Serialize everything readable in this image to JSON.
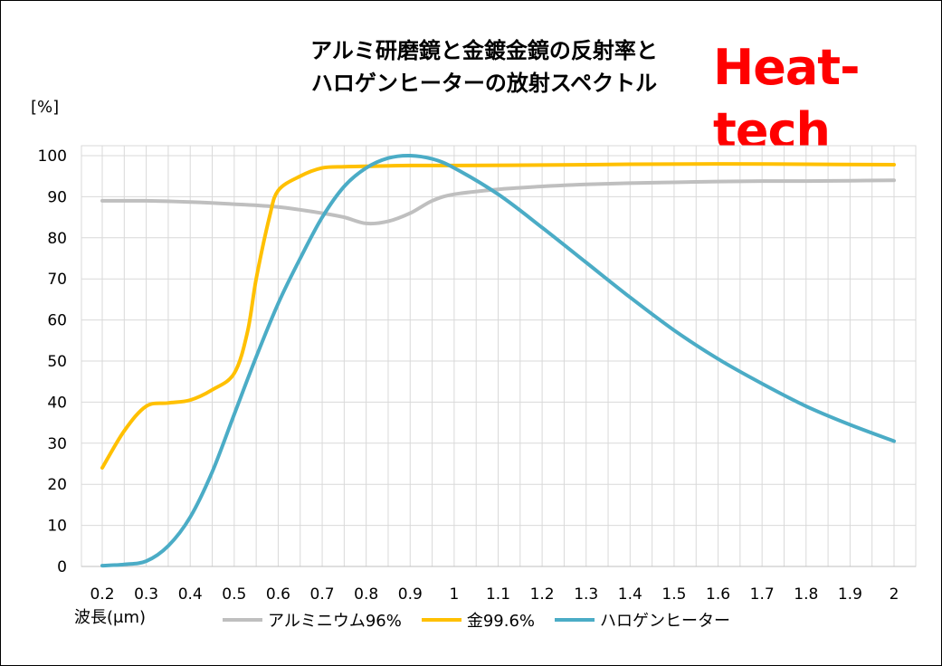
{
  "header": {
    "title_line1": "アルミ研磨鏡と金鍍金鏡の反射率と",
    "title_line2": "ハロゲンヒーターの放射スペクトル",
    "brand": "Heat-tech",
    "brand_color": "#ff0000"
  },
  "chart_data": {
    "type": "line",
    "title": "アルミ研磨鏡と金鍍金鏡の反射率と ハロゲンヒーターの放射スペクトル",
    "ylabel": "[%]",
    "xlabel": "波長(μm)",
    "xlim": [
      0.2,
      2.0
    ],
    "ylim": [
      0,
      100
    ],
    "grid": true,
    "legend": "bottom",
    "x_ticks": [
      "0.2",
      "0.3",
      "0.4",
      "0.5",
      "0.6",
      "0.7",
      "0.8",
      "0.9",
      "1",
      "1.1",
      "1.2",
      "1.3",
      "1.4",
      "1.5",
      "1.6",
      "1.7",
      "1.8",
      "1.9",
      "2"
    ],
    "y_ticks": [
      "0",
      "10",
      "20",
      "30",
      "40",
      "50",
      "60",
      "70",
      "80",
      "90",
      "100"
    ],
    "series": [
      {
        "name": "アルミニウム96%",
        "color": "#bfbfbf",
        "points": [
          [
            0.2,
            89
          ],
          [
            0.3,
            89
          ],
          [
            0.4,
            88.7
          ],
          [
            0.5,
            88.2
          ],
          [
            0.6,
            87.5
          ],
          [
            0.7,
            86
          ],
          [
            0.75,
            85
          ],
          [
            0.8,
            83.5
          ],
          [
            0.85,
            84
          ],
          [
            0.9,
            86
          ],
          [
            0.95,
            89
          ],
          [
            1.0,
            90.6
          ],
          [
            1.1,
            91.8
          ],
          [
            1.2,
            92.5
          ],
          [
            1.3,
            93
          ],
          [
            1.4,
            93.3
          ],
          [
            1.5,
            93.5
          ],
          [
            1.6,
            93.7
          ],
          [
            1.7,
            93.8
          ],
          [
            1.8,
            93.8
          ],
          [
            1.9,
            93.9
          ],
          [
            2.0,
            94
          ]
        ]
      },
      {
        "name": "金99.6%",
        "color": "#ffc000",
        "points": [
          [
            0.2,
            24
          ],
          [
            0.25,
            33
          ],
          [
            0.3,
            39
          ],
          [
            0.35,
            39.8
          ],
          [
            0.4,
            40.5
          ],
          [
            0.45,
            43
          ],
          [
            0.5,
            47
          ],
          [
            0.53,
            57
          ],
          [
            0.55,
            70
          ],
          [
            0.58,
            85
          ],
          [
            0.6,
            91.5
          ],
          [
            0.65,
            95
          ],
          [
            0.7,
            97
          ],
          [
            0.75,
            97.3
          ],
          [
            0.8,
            97.4
          ],
          [
            0.9,
            97.6
          ],
          [
            1.0,
            97.6
          ],
          [
            1.2,
            97.7
          ],
          [
            1.4,
            97.9
          ],
          [
            1.6,
            98
          ],
          [
            1.8,
            97.9
          ],
          [
            2.0,
            97.8
          ]
        ]
      },
      {
        "name": "ハロゲンヒーター",
        "color": "#4bacc6",
        "points": [
          [
            0.2,
            0.2
          ],
          [
            0.25,
            0.5
          ],
          [
            0.3,
            1.3
          ],
          [
            0.35,
            5
          ],
          [
            0.4,
            12
          ],
          [
            0.45,
            23
          ],
          [
            0.5,
            37
          ],
          [
            0.55,
            51
          ],
          [
            0.6,
            64
          ],
          [
            0.65,
            75
          ],
          [
            0.7,
            85
          ],
          [
            0.75,
            92.5
          ],
          [
            0.8,
            97
          ],
          [
            0.85,
            99.4
          ],
          [
            0.9,
            100
          ],
          [
            0.95,
            99.2
          ],
          [
            1.0,
            97
          ],
          [
            1.1,
            90.6
          ],
          [
            1.2,
            82.5
          ],
          [
            1.3,
            74
          ],
          [
            1.4,
            65.5
          ],
          [
            1.5,
            57.5
          ],
          [
            1.6,
            50.5
          ],
          [
            1.7,
            44.5
          ],
          [
            1.8,
            39
          ],
          [
            1.9,
            34.5
          ],
          [
            2.0,
            30.5
          ]
        ]
      }
    ]
  }
}
